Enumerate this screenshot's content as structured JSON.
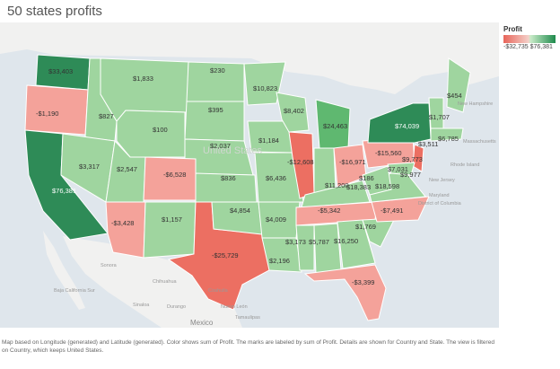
{
  "title": "50 states profits",
  "legend": {
    "title": "Profit",
    "min": "-$32,735",
    "max": "$76,381"
  },
  "colors": {
    "strong_green": "#2e8b57",
    "mid_green": "#5fb870",
    "light_green": "#9fd59f",
    "pale_green": "#bfe5bf",
    "light_red": "#f4a29a",
    "strong_red": "#ec6f62",
    "water": "#dfe6ec",
    "land": "#f1f1f0"
  },
  "background_labels": {
    "united_states": "United States",
    "mexico": "Mexico",
    "new_hampshire": "New Hampshire",
    "massachusetts": "Massachusetts",
    "rhode_island": "Rhode Island",
    "new_jersey": "New Jersey",
    "maryland": "Maryland",
    "district_of_columbia": "District of Columbia",
    "chihuahua": "Chihuahua",
    "baja": "Baja California Sur",
    "sinaloa": "Sinaloa",
    "durango": "Durango",
    "coahuila": "Coahuila",
    "tamaulipas": "Tamaulipas",
    "nuevo_leon": "Nuevo León",
    "sonora": "Sonora"
  },
  "states": [
    {
      "key": "wa",
      "label": "$33,403"
    },
    {
      "key": "or",
      "label": "-$1,190"
    },
    {
      "key": "ca",
      "label": "$76,381"
    },
    {
      "key": "id",
      "label": "$827"
    },
    {
      "key": "mt",
      "label": "$1,833"
    },
    {
      "key": "nd",
      "label": "$230"
    },
    {
      "key": "sd",
      "label": "$395"
    },
    {
      "key": "wy",
      "label": "$100"
    },
    {
      "key": "ne",
      "label": "$2,037"
    },
    {
      "key": "nv",
      "label": "$3,317"
    },
    {
      "key": "ut",
      "label": "$2,547"
    },
    {
      "key": "co",
      "label": "-$6,528"
    },
    {
      "key": "az",
      "label": "-$3,428"
    },
    {
      "key": "nm",
      "label": "$1,157"
    },
    {
      "key": "tx",
      "label": "-$25,729"
    },
    {
      "key": "ks",
      "label": "$836"
    },
    {
      "key": "ok",
      "label": "$4,854"
    },
    {
      "key": "mn",
      "label": "$10,823"
    },
    {
      "key": "ia",
      "label": "$1,184"
    },
    {
      "key": "mo",
      "label": "$6,436"
    },
    {
      "key": "ar",
      "label": "$4,009"
    },
    {
      "key": "la",
      "label": "$2,196"
    },
    {
      "key": "wi",
      "label": "$8,402"
    },
    {
      "key": "il",
      "label": "-$12,608"
    },
    {
      "key": "mi",
      "label": "$24,463"
    },
    {
      "key": "in",
      "label": "$18,383"
    },
    {
      "key": "oh",
      "label": "-$16,971"
    },
    {
      "key": "ky",
      "label": "$11,200"
    },
    {
      "key": "tn",
      "label": "-$5,342"
    },
    {
      "key": "ms",
      "label": "$3,173"
    },
    {
      "key": "al",
      "label": "$5,787"
    },
    {
      "key": "ga",
      "label": "$16,250"
    },
    {
      "key": "fl",
      "label": "-$3,399"
    },
    {
      "key": "sc",
      "label": "$1,769"
    },
    {
      "key": "nc",
      "label": "-$7,491"
    },
    {
      "key": "va",
      "label": "$18,598"
    },
    {
      "key": "wv",
      "label": "$186"
    },
    {
      "key": "pa",
      "label": "-$15,560"
    },
    {
      "key": "ny",
      "label": "$74,039"
    },
    {
      "key": "vt",
      "label": "$1,707"
    },
    {
      "key": "me",
      "label": "$454"
    },
    {
      "key": "ma",
      "label": "$6,785"
    },
    {
      "key": "ct",
      "label": "$3,511"
    },
    {
      "key": "nj",
      "label": "$9,773"
    },
    {
      "key": "md",
      "label": "$7,031"
    },
    {
      "key": "de",
      "label": "$9,977"
    }
  ],
  "caption": "Map based on Longitude (generated) and Latitude (generated). Color shows sum of Profit. The marks are labeled by sum of Profit. Details are shown for Country and State. The view is filtered on Country, which keeps United States."
}
